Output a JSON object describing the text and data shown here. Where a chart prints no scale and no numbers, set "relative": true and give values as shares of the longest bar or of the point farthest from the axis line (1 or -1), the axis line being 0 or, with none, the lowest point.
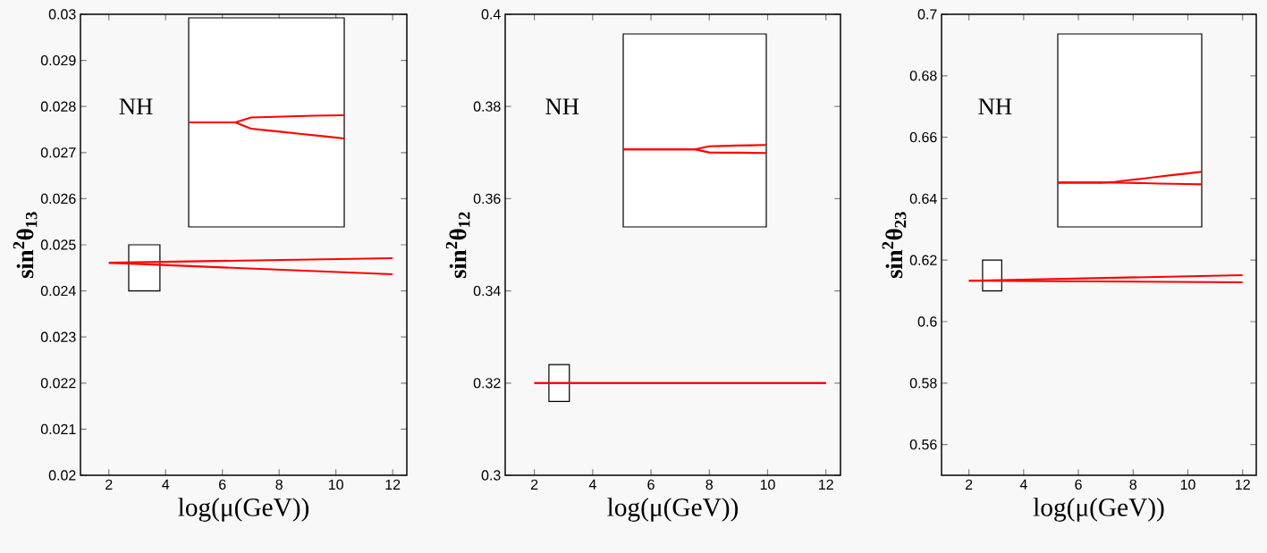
{
  "chart_data": [
    {
      "type": "line",
      "xlabel": "log(μ(GeV))",
      "ylabel": "sin$^{2}$θ$_{13}$",
      "annotations": [
        "NH"
      ],
      "xlim": [
        1,
        12.5
      ],
      "ylim": [
        0.02,
        0.03
      ],
      "xticks": [
        2,
        4,
        6,
        8,
        10,
        12
      ],
      "yticks": [
        0.02,
        0.021,
        0.022,
        0.023,
        0.024,
        0.025,
        0.026,
        0.027,
        0.028,
        0.029,
        0.03
      ],
      "series": [
        {
          "color": "#ff0000",
          "x": [
            2,
            12
          ],
          "values": [
            0.02461,
            0.02471
          ]
        },
        {
          "color": "#ff0000",
          "x": [
            2,
            12
          ],
          "values": [
            0.02461,
            0.02436
          ]
        },
        {
          "type": "bar",
          "color": "#000000",
          "x": [
            3.25
          ],
          "base": [
            0.024
          ],
          "values": [
            0.001
          ]
        }
      ]
    },
    {
      "type": "line",
      "relative": true,
      "categories": [
        null,
        null,
        null,
        null,
        null,
        null,
        null,
        null,
        null,
        null,
        null
      ],
      "series": [
        {
          "color": "#ff0000",
          "values": [
            0.69,
            0.69,
            0.69,
            0.69,
            0.9,
            0.92,
            0.94,
            0.96,
            0.98,
            0.99,
            1
          ]
        },
        {
          "color": "#ff0000",
          "values": [
            0.69,
            0.69,
            0.69,
            0.69,
            0.42,
            0.35,
            0.28,
            0.21,
            0.14,
            0.07,
            0
          ]
        }
      ]
    },
    {
      "type": "line",
      "xlabel": "log(μ(GeV))",
      "ylabel": "sin$^{2}$θ$_{12}$",
      "annotations": [
        "NH"
      ],
      "xlim": [
        1,
        12.5
      ],
      "ylim": [
        0.3,
        0.4
      ],
      "xticks": [
        2,
        4,
        6,
        8,
        10,
        12
      ],
      "yticks": [
        0.3,
        0.32,
        0.34,
        0.36,
        0.38,
        0.4
      ],
      "series": [
        {
          "color": "#ff0000",
          "x": [
            2,
            12
          ],
          "values": [
            0.32,
            0.32
          ]
        },
        {
          "color": "#ff0000",
          "x": [
            2,
            12
          ],
          "values": [
            0.32,
            0.32
          ]
        },
        {
          "type": "bar",
          "color": "#000000",
          "x": [
            2.85
          ],
          "base": [
            0.316
          ],
          "values": [
            0.008
          ]
        }
      ]
    },
    {
      "type": "line",
      "relative": true,
      "categories": [
        null,
        null,
        null,
        null,
        null,
        null,
        null,
        null,
        null,
        null,
        null
      ],
      "series": [
        {
          "color": "#ff0000",
          "values": [
            0.44,
            0.44,
            0.44,
            0.44,
            0.44,
            0.44,
            0.83,
            0.87,
            0.92,
            0.96,
            1
          ]
        },
        {
          "color": "#ff0000",
          "values": [
            0.44,
            0.44,
            0.44,
            0.44,
            0.44,
            0.44,
            0.06,
            0.04,
            0.03,
            0.01,
            0
          ]
        }
      ]
    },
    {
      "type": "line",
      "xlabel": "log(μ(GeV))",
      "ylabel": "sin$^{2}$θ$_{23}$",
      "annotations": [
        "NH"
      ],
      "xlim": [
        1,
        12.5
      ],
      "ylim": [
        0.55,
        0.7
      ],
      "xticks": [
        2,
        4,
        6,
        8,
        10,
        12
      ],
      "yticks": [
        0.56,
        0.58,
        0.6,
        0.62,
        0.64,
        0.66,
        0.68,
        0.7
      ],
      "series": [
        {
          "color": "#ff0000",
          "x": [
            2,
            12
          ],
          "values": [
            0.6133,
            0.6151
          ]
        },
        {
          "color": "#ff0000",
          "x": [
            2,
            12
          ],
          "values": [
            0.6133,
            0.6128
          ]
        },
        {
          "type": "bar",
          "color": "#000000",
          "x": [
            2.85
          ],
          "base": [
            0.61
          ],
          "values": [
            0.01
          ]
        }
      ]
    },
    {
      "type": "line",
      "relative": true,
      "categories": [
        null,
        null,
        null,
        null,
        null,
        null,
        null,
        null,
        null,
        null,
        null
      ],
      "series": [
        {
          "color": "#ff0000",
          "values": [
            0.14,
            0.14,
            0.14,
            0.14,
            0.2,
            0.34,
            0.47,
            0.61,
            0.74,
            0.87,
            1
          ]
        },
        {
          "color": "#ff0000",
          "values": [
            0.14,
            0.14,
            0.14,
            0.14,
            0.13,
            0.11,
            0.09,
            0.06,
            0.04,
            0.02,
            0
          ]
        }
      ]
    }
  ]
}
